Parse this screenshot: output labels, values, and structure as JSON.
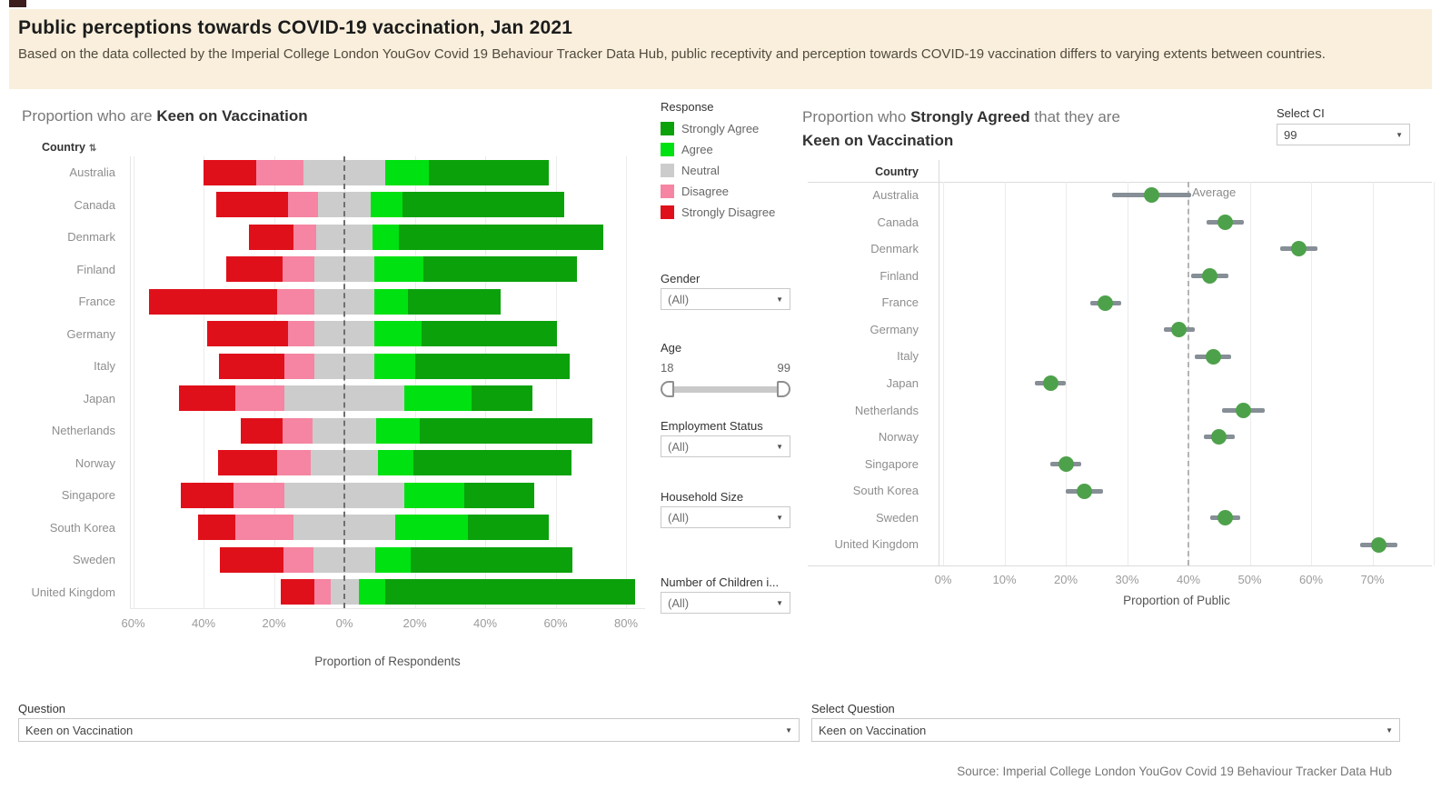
{
  "header": {
    "title": "Public perceptions towards COVID-19 vaccination, Jan 2021",
    "subtitle": "Based on the data collected by the Imperial College London YouGov Covid 19 Behaviour Tracker Data Hub, public receptivity and perception towards COVID-19 vaccination differs to varying extents between countries."
  },
  "left_chart": {
    "title_prefix": "Proportion who are ",
    "title_bold": "Keen on Vaccination",
    "column_header": "Country",
    "xlabel": "Proportion of Respondents"
  },
  "legend": {
    "title": "Response",
    "items": [
      {
        "label": "Strongly Agree",
        "color": "#0ba10b"
      },
      {
        "label": "Agree",
        "color": "#00e112"
      },
      {
        "label": "Neutral",
        "color": "#cccccc"
      },
      {
        "label": "Disagree",
        "color": "#f585a2"
      },
      {
        "label": "Strongly Disagree",
        "color": "#e0101b"
      }
    ]
  },
  "filters": {
    "gender": {
      "label": "Gender",
      "value": "(All)"
    },
    "age": {
      "label": "Age",
      "min": "18",
      "max": "99"
    },
    "employment": {
      "label": "Employment Status",
      "value": "(All)"
    },
    "household": {
      "label": "Household Size",
      "value": "(All)"
    },
    "children": {
      "label": "Number of Children i...",
      "value": "(All)"
    }
  },
  "right_chart": {
    "title_prefix": "Proportion who ",
    "title_bold1": "Strongly Agreed",
    "title_mid": " that they are",
    "title_bold2": "Keen on Vaccination",
    "select_ci_label": "Select CI",
    "select_ci_value": "99",
    "column_header": "Country",
    "average_label": "Average",
    "xlabel": "Proportion of Public"
  },
  "bottom": {
    "question_label": "Question",
    "question_value": "Keen on Vaccination",
    "select_question_label": "Select Question",
    "select_question_value": "Keen on Vaccination"
  },
  "footer": {
    "source": "Source: Imperial College London YouGov Covid 19 Behaviour Tracker Data Hub"
  },
  "chart_data": [
    {
      "type": "bar",
      "subtype": "diverging_stacked_horizontal",
      "title": "Proportion who are Keen on Vaccination",
      "xlabel": "Proportion of Respondents",
      "x_ticks_percent": [
        -60,
        -40,
        -20,
        0,
        20,
        40,
        60,
        80
      ],
      "note": "Neutral segment is centred on the 0% dashed line; Disagree/Strongly Disagree extend left, Agree/Strongly Agree extend right. Values in % of respondents.",
      "categories": [
        "Australia",
        "Canada",
        "Denmark",
        "Finland",
        "France",
        "Germany",
        "Italy",
        "Japan",
        "Netherlands",
        "Norway",
        "Singapore",
        "South Korea",
        "Sweden",
        "United Kingdom"
      ],
      "series": [
        {
          "name": "Strongly Disagree",
          "values": [
            15,
            20.5,
            12.5,
            16,
            36.5,
            23,
            18.5,
            16,
            12,
            17,
            15,
            10.5,
            18,
            9.5
          ]
        },
        {
          "name": "Disagree",
          "values": [
            13.5,
            8.5,
            6.5,
            9,
            10.5,
            7.5,
            8.5,
            14,
            8.5,
            9.5,
            14.5,
            16.5,
            8.5,
            4.5
          ]
        },
        {
          "name": "Neutral",
          "values": [
            23,
            15,
            16,
            17,
            17,
            17,
            17,
            34,
            18,
            19,
            34,
            29,
            17.5,
            8
          ]
        },
        {
          "name": "Agree",
          "values": [
            12.5,
            9,
            7.5,
            14,
            9.5,
            13.5,
            11.5,
            19,
            12.5,
            10,
            17,
            20.5,
            10,
            7.5
          ]
        },
        {
          "name": "Strongly Agree",
          "values": [
            34,
            46,
            58,
            43.5,
            26.5,
            38.5,
            44,
            17.5,
            49,
            45,
            20,
            23,
            46,
            71
          ]
        }
      ]
    },
    {
      "type": "scatter",
      "subtype": "dot_with_confidence_interval",
      "title": "Proportion who Strongly Agreed that they are Keen on Vaccination",
      "xlabel": "Proportion of Public",
      "x_ticks_percent": [
        0,
        10,
        20,
        30,
        40,
        50,
        60,
        70
      ],
      "xlim": [
        0,
        80
      ],
      "categories": [
        "Australia",
        "Canada",
        "Denmark",
        "Finland",
        "France",
        "Germany",
        "Italy",
        "Japan",
        "Netherlands",
        "Norway",
        "Singapore",
        "South Korea",
        "Sweden",
        "United Kingdom"
      ],
      "values": [
        34,
        46,
        58,
        43.5,
        26.5,
        38.5,
        44,
        17.5,
        49,
        45,
        20,
        23,
        46,
        71
      ],
      "ci_low": [
        27.5,
        43,
        55,
        40.5,
        24,
        36,
        41,
        15,
        45.5,
        42.5,
        17.5,
        20,
        43.5,
        68
      ],
      "ci_high": [
        40.5,
        49,
        61,
        46.5,
        29,
        41,
        47,
        20,
        52.5,
        47.5,
        22.5,
        26,
        48.5,
        74
      ],
      "average": 40,
      "confidence_level": "99",
      "dot_color": "#4ea14b",
      "ci_color": "#868e96"
    }
  ]
}
